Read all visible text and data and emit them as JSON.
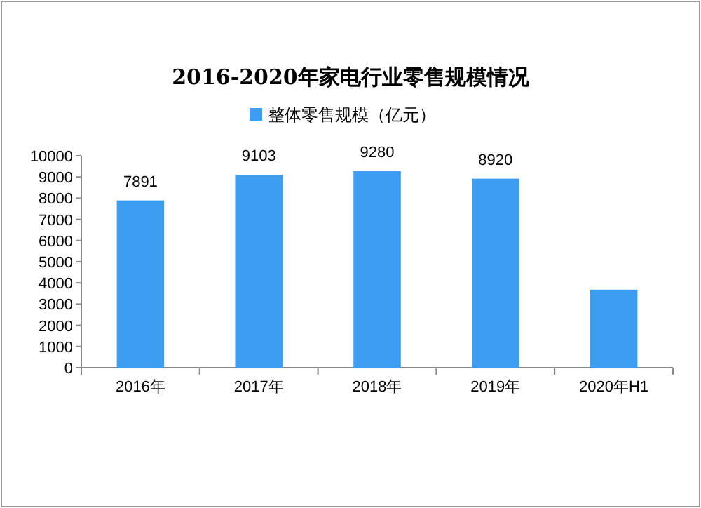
{
  "chart_data": {
    "type": "bar",
    "title": "2016-2020年家电行业零售规模情况",
    "categories": [
      "2016年",
      "2017年",
      "2018年",
      "2019年",
      "2020年H1"
    ],
    "series": [
      {
        "name": "整体零售规模（亿元）",
        "color": "#3d9df0",
        "values": [
          7891,
          9103,
          9280,
          8920,
          3680
        ],
        "value_labels": [
          "7891",
          "9103",
          "9280",
          "8920",
          null
        ]
      }
    ],
    "ylim": [
      0,
      10000
    ],
    "yticks": [
      0,
      1000,
      2000,
      3000,
      4000,
      5000,
      6000,
      7000,
      8000,
      9000,
      10000
    ],
    "legend": "top",
    "grid": false
  }
}
